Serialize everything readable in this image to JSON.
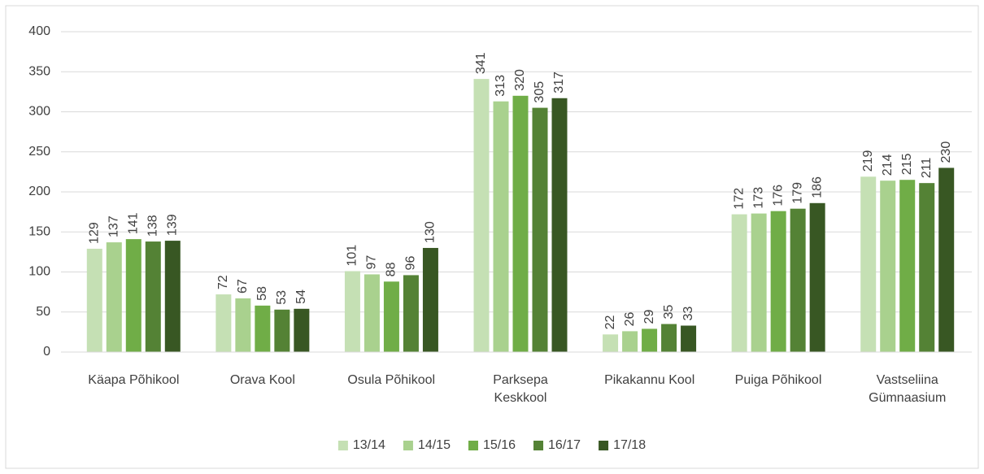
{
  "chart_data": {
    "type": "bar",
    "categories": [
      "Käapa Põhikool",
      "Orava Kool",
      "Osula Põhikool",
      "Parksepa Keskkool",
      "Pikakannu Kool",
      "Puiga Põhikool",
      "Vastseliina Gümnaasium"
    ],
    "series": [
      {
        "name": "13/14",
        "color": "#c5e0b4",
        "values": [
          129,
          72,
          101,
          341,
          22,
          172,
          219
        ]
      },
      {
        "name": "14/15",
        "color": "#a9d18e",
        "values": [
          137,
          67,
          97,
          313,
          26,
          173,
          214
        ]
      },
      {
        "name": "15/16",
        "color": "#70ad47",
        "values": [
          141,
          58,
          88,
          320,
          29,
          176,
          215
        ]
      },
      {
        "name": "16/17",
        "color": "#548235",
        "values": [
          138,
          53,
          96,
          305,
          35,
          179,
          211
        ]
      },
      {
        "name": "17/18",
        "color": "#385723",
        "values": [
          139,
          54,
          130,
          317,
          33,
          186,
          230
        ]
      }
    ],
    "ylim": [
      0,
      400
    ],
    "yticks": [
      0,
      50,
      100,
      150,
      200,
      250,
      300,
      350,
      400
    ],
    "grid": true,
    "legend": "bottom"
  }
}
